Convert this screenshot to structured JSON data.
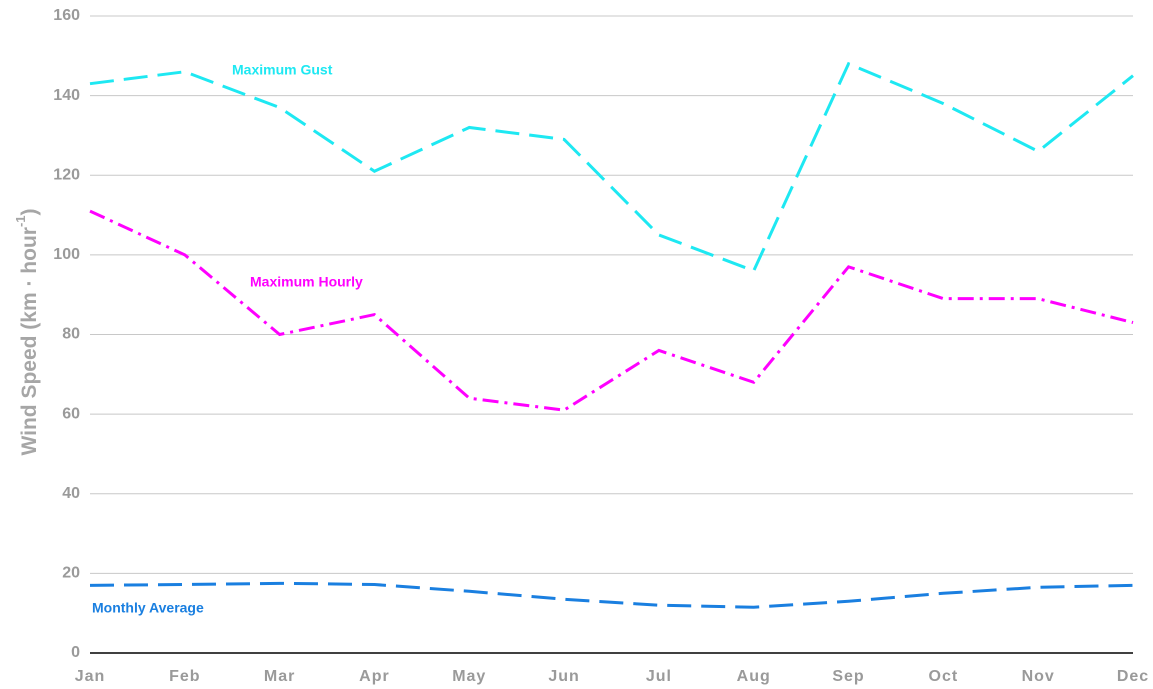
{
  "chart_data": {
    "type": "line",
    "y_label": {
      "text": "Wind Speed (km · hour",
      "superscript": "-1",
      "suffix": ")"
    },
    "categories": [
      "Jan",
      "Feb",
      "Mar",
      "Apr",
      "May",
      "Jun",
      "Jul",
      "Aug",
      "Sep",
      "Oct",
      "Nov",
      "Dec"
    ],
    "series": [
      {
        "name": "Maximum Gust",
        "color": "#1ee8f2",
        "dash": "dashed",
        "values": [
          143,
          146,
          137,
          121,
          132,
          129,
          105,
          96,
          148,
          138,
          126,
          145
        ]
      },
      {
        "name": "Maximum Hourly",
        "color": "#ff00ff",
        "dash": "dashdot",
        "values": [
          111,
          100,
          80,
          85,
          64,
          61,
          76,
          68,
          97,
          89,
          89,
          83
        ]
      },
      {
        "name": "Monthly Average",
        "color": "#1a7fe0",
        "dash": "dashed",
        "values": [
          17,
          17.2,
          17.5,
          17.2,
          15.5,
          13.5,
          12,
          11.5,
          13,
          15,
          16.5,
          17
        ]
      }
    ],
    "ylim": [
      0,
      160
    ],
    "yticks": [
      0,
      20,
      40,
      60,
      80,
      100,
      120,
      140,
      160
    ],
    "grid": true
  }
}
